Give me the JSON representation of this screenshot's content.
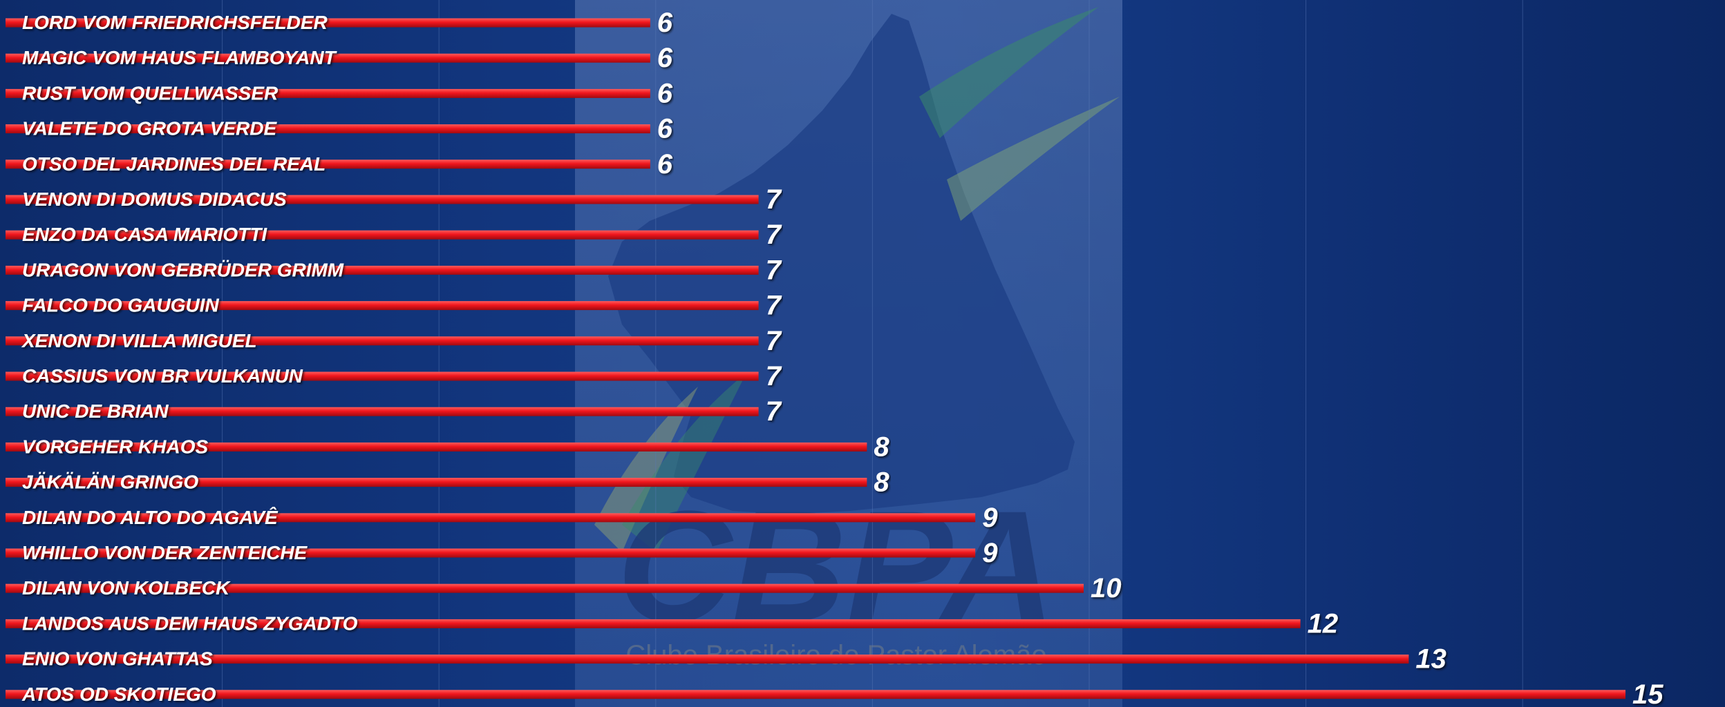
{
  "watermark": {
    "logo_text": "CBPA",
    "subtitle": "Clube Brasileiro do Pastor Alemão"
  },
  "colors": {
    "bar": "#e0141b",
    "bar_highlight": "#ff4a4a",
    "text": "#ffffff",
    "gridline": "#5a7ab8"
  },
  "chart_data": {
    "type": "bar",
    "orientation": "horizontal",
    "categories": [
      "LORD VOM FRIEDRICHSFELDER",
      "MAGIC VOM HAUS FLAMBOYANT",
      "RUST VOM QUELLWASSER",
      "VALETE DO GROTA VERDE",
      "OTSO DEL JARDINES DEL REAL",
      "VENON DI DOMUS DIDACUS",
      "ENZO DA CASA MARIOTTI",
      "URAGON VON GEBRÜDER GRIMM",
      "FALCO DO GAUGUIN",
      "XENON DI VILLA MIGUEL",
      "CASSIUS VON BR VULKANUN",
      "UNIC DE BRIAN",
      "VORGEHER KHAOS",
      "JÄKÄLÄN GRINGO",
      "DILAN DO ALTO DO AGAVÊ",
      "WHILLO VON DER ZENTEICHE",
      "DILAN VON KOLBECK",
      "LANDOS AUS DEM HAUS ZYGADTO",
      "ENIO VON GHATTAS",
      "ATOS OD SKOTIEGO"
    ],
    "values": [
      6,
      6,
      6,
      6,
      6,
      7,
      7,
      7,
      7,
      7,
      7,
      7,
      8,
      8,
      9,
      9,
      10,
      12,
      13,
      15
    ],
    "value_labels": [
      "6",
      "6",
      "6",
      "6",
      "6",
      "7",
      "7",
      "7",
      "7",
      "7",
      "7",
      "7",
      "8",
      "8",
      "9",
      "9",
      "10",
      "12",
      "13",
      "15"
    ],
    "xlim": [
      0,
      16
    ],
    "grid": true,
    "legend": "none"
  }
}
